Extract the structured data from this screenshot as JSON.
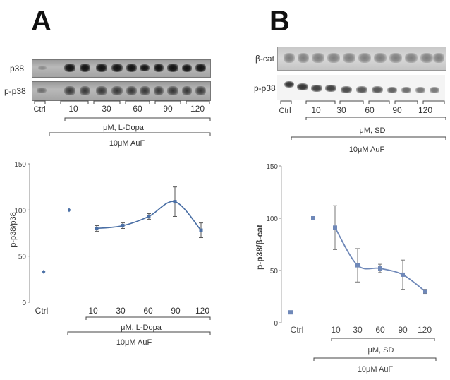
{
  "panels": {
    "a": {
      "letter": "A"
    },
    "b": {
      "letter": "B"
    }
  },
  "blot_a": {
    "row_labels": [
      "p38",
      "p-p38"
    ],
    "ctrl_label": "Ctrl",
    "lane_groups": [
      "10",
      "30",
      "60",
      "90",
      "120"
    ],
    "treatment": "μM, L-Dopa",
    "condition": "10μM AuF"
  },
  "blot_b": {
    "row_labels": [
      "β-cat",
      "p-p38"
    ],
    "ctrl_label": "Ctrl",
    "lane_groups": [
      "10",
      "30",
      "60",
      "90",
      "120"
    ],
    "treatment": "μM, SD",
    "condition": "10μM AuF"
  },
  "chart_data": [
    {
      "type": "line",
      "panel": "A",
      "ylabel": "p-p38/p38",
      "ylim": [
        0,
        150
      ],
      "yticks": [
        "150",
        "100",
        "50",
        "0"
      ],
      "xtick_labels": [
        "Ctrl",
        "10",
        "30",
        "60",
        "90",
        "120"
      ],
      "treatment_label": "μM, L-Dopa",
      "condition_label": "10μM AuF",
      "color": "#4a6fa5",
      "ctrl_point": {
        "label": "Ctrl",
        "value": 33
      },
      "auf_only_point": {
        "label": "10μM AuF only",
        "value": 100
      },
      "series": [
        {
          "name": "L-Dopa + 10μM AuF",
          "x": [
            "10",
            "30",
            "60",
            "90",
            "120"
          ],
          "values": [
            80,
            83,
            93,
            109,
            78
          ],
          "errors": [
            3,
            3,
            3,
            16,
            8
          ]
        }
      ]
    },
    {
      "type": "line",
      "panel": "B",
      "ylabel": "p-p38/β-cat",
      "ylim": [
        0,
        150
      ],
      "yticks": [
        "150",
        "100",
        "50",
        "0"
      ],
      "xtick_labels": [
        "Ctrl",
        "10",
        "30",
        "60",
        "90",
        "120"
      ],
      "treatment_label": "μM, SD",
      "condition_label": "10μM AuF",
      "color": "#6f88b8",
      "ctrl_point": {
        "label": "Ctrl",
        "value": 10
      },
      "auf_only_point": {
        "label": "10μM AuF only",
        "value": 100
      },
      "series": [
        {
          "name": "SD + 10μM AuF",
          "x": [
            "10",
            "30",
            "60",
            "90",
            "120"
          ],
          "values": [
            91,
            55,
            52,
            46,
            30
          ],
          "errors": [
            21,
            16,
            4,
            14,
            2
          ]
        }
      ]
    }
  ]
}
